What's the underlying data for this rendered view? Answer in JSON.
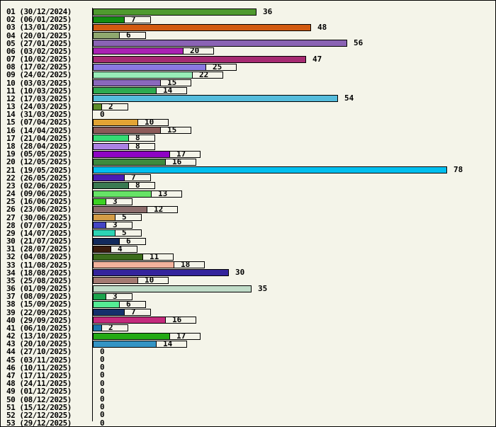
{
  "chart": {
    "background_color": "#f4f4e9",
    "border_color": "#000000",
    "axis_color": "#000000",
    "text_color": "#000000"
  },
  "chart_data": {
    "type": "bar",
    "orientation": "horizontal",
    "title": "",
    "xlabel": "",
    "ylabel": "",
    "xlim": [
      0,
      88
    ],
    "grid": false,
    "legend": false,
    "value_labels_shown": true,
    "categories": [
      "01 (30/12/2024)",
      "02 (06/01/2025)",
      "03 (13/01/2025)",
      "04 (20/01/2025)",
      "05 (27/01/2025)",
      "06 (03/02/2025)",
      "07 (10/02/2025)",
      "08 (17/02/2025)",
      "09 (24/02/2025)",
      "10 (03/03/2025)",
      "11 (10/03/2025)",
      "12 (17/03/2025)",
      "13 (24/03/2025)",
      "14 (31/03/2025)",
      "15 (07/04/2025)",
      "16 (14/04/2025)",
      "17 (21/04/2025)",
      "18 (28/04/2025)",
      "19 (05/05/2025)",
      "20 (12/05/2025)",
      "21 (19/05/2025)",
      "22 (26/05/2025)",
      "23 (02/06/2025)",
      "24 (09/06/2025)",
      "25 (16/06/2025)",
      "26 (23/06/2025)",
      "27 (30/06/2025)",
      "28 (07/07/2025)",
      "29 (14/07/2025)",
      "30 (21/07/2025)",
      "31 (28/07/2025)",
      "32 (04/08/2025)",
      "33 (11/08/2025)",
      "34 (18/08/2025)",
      "35 (25/08/2025)",
      "36 (01/09/2025)",
      "37 (08/09/2025)",
      "38 (15/09/2025)",
      "39 (22/09/2025)",
      "40 (29/09/2025)",
      "41 (06/10/2025)",
      "42 (13/10/2025)",
      "43 (20/10/2025)",
      "44 (27/10/2025)",
      "45 (03/11/2025)",
      "46 (10/11/2025)",
      "47 (17/11/2025)",
      "48 (24/11/2025)",
      "49 (01/12/2025)",
      "50 (08/12/2025)",
      "51 (15/12/2025)",
      "52 (22/12/2025)",
      "53 (29/12/2025)"
    ],
    "values": [
      36,
      7,
      48,
      6,
      56,
      20,
      47,
      25,
      22,
      15,
      14,
      54,
      2,
      0,
      10,
      15,
      8,
      8,
      17,
      16,
      78,
      7,
      8,
      13,
      3,
      12,
      5,
      3,
      5,
      6,
      4,
      11,
      18,
      30,
      10,
      35,
      3,
      6,
      7,
      16,
      2,
      17,
      14,
      0,
      0,
      0,
      0,
      0,
      0,
      0,
      0,
      0,
      0
    ],
    "bar_colors": [
      "#4f9a2f",
      "#128c12",
      "#d25a10",
      "#8fa86e",
      "#8a63b4",
      "#aa22b4",
      "#a62a72",
      "#8a78e2",
      "#98ecb8",
      "#8a68bc",
      "#2eaa50",
      "#55bcdc",
      "#5d8c2a",
      null,
      "#e2a434",
      "#8d5a58",
      "#35dc74",
      "#ab82e4",
      "#8e04c4",
      "#3e8a3e",
      "#00bfef",
      "#4a1cb4",
      "#3a7a52",
      "#66e366",
      "#3cd224",
      "#8c6c6c",
      "#d49c46",
      "#4444c4",
      "#2cd4b4",
      "#122a5c",
      "#3a1c0c",
      "#3c6c1c",
      "#f2b29c",
      "#34249c",
      "#a47a72",
      "#c0dcc8",
      "#1ca44c",
      "#54ec94",
      "#14306c",
      "#c42a7c",
      "#1c74ac",
      "#24aa14",
      "#3494c4",
      null,
      null,
      null,
      null,
      null,
      null,
      null,
      null,
      null,
      null
    ]
  }
}
